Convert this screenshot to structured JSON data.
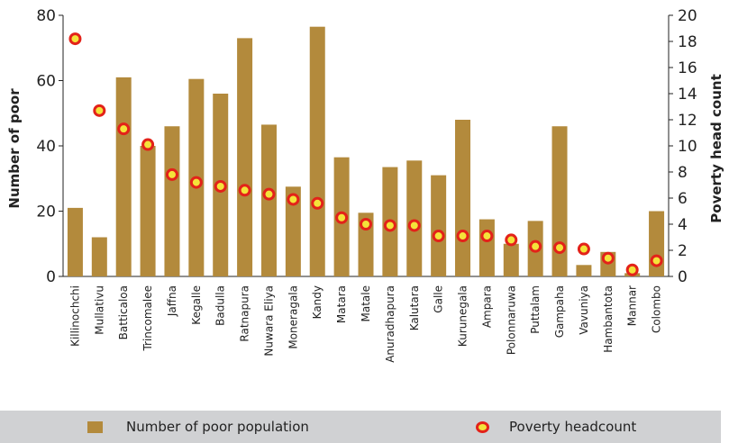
{
  "colors": {
    "bar": "#b38a3c",
    "marker_fill": "#f4e33a",
    "marker_stroke": "#e32219",
    "axis": "#222222",
    "legend_bg": "#d0d1d3"
  },
  "legend": {
    "bars_label": "Number of poor population",
    "markers_label": "Poverty headcount"
  },
  "chart_data": {
    "type": "bar",
    "xlabel": "",
    "ylabel": "Number of poor",
    "y2label": "Poverty head count",
    "ylim": [
      0,
      80
    ],
    "y2lim": [
      0,
      20
    ],
    "yticks": [
      "0",
      "20",
      "40",
      "60",
      "80"
    ],
    "y2ticks": [
      "0",
      "2",
      "4",
      "6",
      "8",
      "10",
      "12",
      "14",
      "16",
      "18",
      "20"
    ],
    "categories": [
      "Killinochchi",
      "Mullativu",
      "Batticaloa",
      "Trincomalee",
      "Jaffna",
      "Kegalle",
      "Badulla",
      "Ratnapura",
      "Nuwara Eliya",
      "Moneragala",
      "Kandy",
      "Matara",
      "Matale",
      "Anuradhapura",
      "Kalutara",
      "Galle",
      "Kurunegala",
      "Ampara",
      "Polonnaruwa",
      "Puttalam",
      "Gampaha",
      "Vavuniya",
      "Hambantota",
      "Mannar",
      "Colombo"
    ],
    "series": [
      {
        "name": "Number of poor population",
        "type": "bar",
        "axis": "left",
        "values": [
          21,
          12,
          61,
          40,
          46,
          60.5,
          56,
          73,
          46.5,
          27.5,
          76.5,
          36.5,
          19.5,
          33.5,
          35.5,
          31,
          48,
          17.5,
          10,
          17,
          46,
          3.5,
          7.5,
          1,
          20
        ]
      },
      {
        "name": "Poverty headcount",
        "type": "scatter",
        "axis": "right",
        "values": [
          18.2,
          12.7,
          11.3,
          10.1,
          7.8,
          7.2,
          6.9,
          6.6,
          6.3,
          5.9,
          5.6,
          4.5,
          4.0,
          3.9,
          3.9,
          3.1,
          3.1,
          3.1,
          2.8,
          2.3,
          2.2,
          2.1,
          1.4,
          0.5,
          1.2
        ]
      }
    ],
    "grid": false,
    "legend_position": "bottom"
  }
}
